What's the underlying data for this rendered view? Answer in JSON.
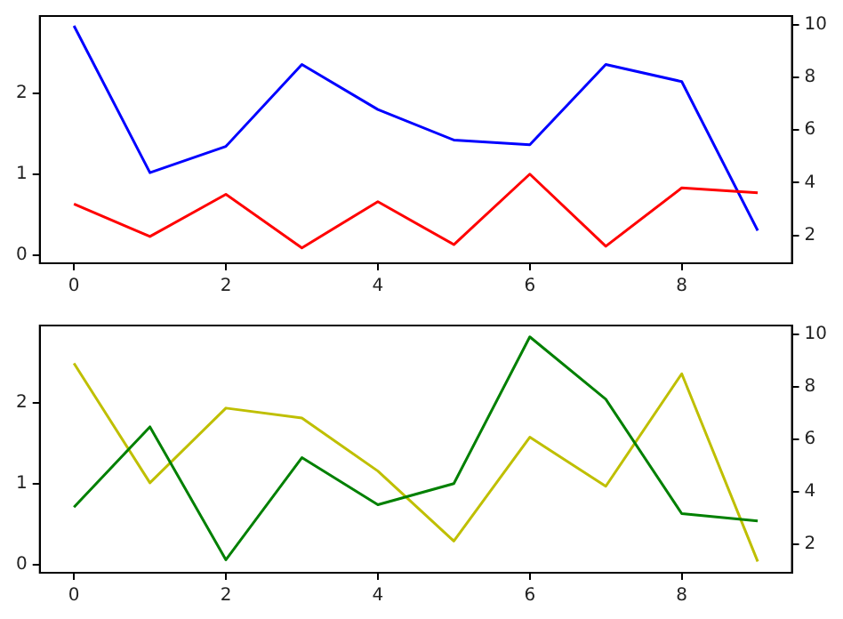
{
  "chart_data": [
    {
      "type": "line",
      "x": [
        0,
        1,
        2,
        3,
        4,
        5,
        6,
        7,
        8,
        9
      ],
      "xlim": [
        -0.45,
        9.45
      ],
      "xticks": [
        0,
        2,
        4,
        6,
        8
      ],
      "ylim": [
        -0.1,
        2.95
      ],
      "yticks": [
        0,
        1,
        2
      ],
      "y2lim": [
        0.94,
        10.33
      ],
      "y2ticks": [
        2,
        4,
        6,
        8,
        10
      ],
      "grid": false,
      "legend": false,
      "series": [
        {
          "color": "#ff0000",
          "values": [
            0.63,
            0.23,
            0.75,
            0.09,
            0.66,
            0.13,
            1.0,
            0.11,
            0.83,
            0.77
          ]
        },
        {
          "color": "#0000ff",
          "axis": "y2",
          "values": [
            9.96,
            4.38,
            5.38,
            8.49,
            6.78,
            5.62,
            5.44,
            8.49,
            7.84,
            2.18
          ]
        }
      ]
    },
    {
      "type": "line",
      "x": [
        0,
        1,
        2,
        3,
        4,
        5,
        6,
        7,
        8,
        9
      ],
      "xlim": [
        -0.45,
        9.45
      ],
      "xticks": [
        0,
        2,
        4,
        6,
        8
      ],
      "ylim": [
        -0.1,
        2.95
      ],
      "yticks": [
        0,
        1,
        2
      ],
      "y2lim": [
        0.9,
        10.33
      ],
      "y2ticks": [
        2,
        4,
        6,
        8,
        10
      ],
      "grid": false,
      "legend": false,
      "series": [
        {
          "color": "#008000",
          "values": [
            0.71,
            1.7,
            0.06,
            1.32,
            0.74,
            1.0,
            2.81,
            2.04,
            0.63,
            0.54
          ]
        },
        {
          "color": "#bfbf00",
          "axis": "y2",
          "values": [
            8.89,
            4.33,
            7.18,
            6.8,
            4.78,
            2.11,
            6.07,
            4.2,
            8.49,
            1.33
          ]
        }
      ]
    }
  ]
}
